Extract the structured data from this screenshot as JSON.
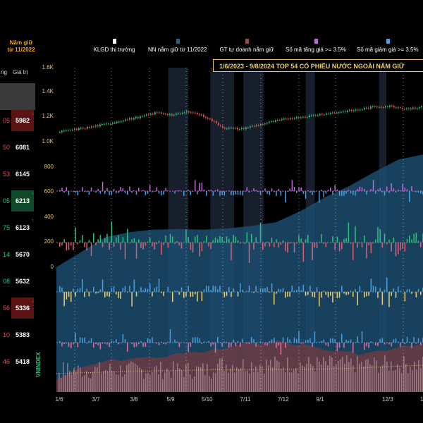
{
  "left_table": {
    "header_main": "Năm giữ từ 11/2022",
    "col_a": "ng",
    "col_b": "Giá trị",
    "rows": [
      {
        "a": "05",
        "b": "5982",
        "a_color": "#e0524a",
        "bg": "#5a1414",
        "arrow": "↓",
        "arrow_color": "#e0524a"
      },
      {
        "a": "50",
        "b": "6081",
        "a_color": "#e0524a",
        "bg": "#000000",
        "arrow": "",
        "arrow_color": ""
      },
      {
        "a": "53",
        "b": "6145",
        "a_color": "#e0524a",
        "bg": "#000000",
        "arrow": "",
        "arrow_color": ""
      },
      {
        "a": "05",
        "b": "6213",
        "a_color": "#2ec27e",
        "bg": "#0f4a2a",
        "arrow": "↑",
        "arrow_color": "#2ec27e"
      },
      {
        "a": "75",
        "b": "6123",
        "a_color": "#2ec27e",
        "bg": "#000000",
        "arrow": "↑",
        "arrow_color": "#2ec27e"
      },
      {
        "a": "14",
        "b": "5670",
        "a_color": "#2ec27e",
        "bg": "#000000",
        "arrow": "",
        "arrow_color": ""
      },
      {
        "a": "08",
        "b": "5632",
        "a_color": "#2ec27e",
        "bg": "#000000",
        "arrow": "",
        "arrow_color": ""
      },
      {
        "a": "56",
        "b": "5336",
        "a_color": "#e0524a",
        "bg": "#5a1414",
        "arrow": "↓",
        "arrow_color": "#e0524a"
      },
      {
        "a": "10",
        "b": "5383",
        "a_color": "#e0524a",
        "bg": "#000000",
        "arrow": "",
        "arrow_color": ""
      },
      {
        "a": "46",
        "b": "5418",
        "a_color": "#e0524a",
        "bg": "#000000",
        "arrow": "",
        "arrow_color": ""
      }
    ]
  },
  "legend": [
    {
      "label": "KLGD thị trường",
      "color": "#ffffff"
    },
    {
      "label": "NN nắm giữ từ 11/2022",
      "color": "#2a5f86"
    },
    {
      "label": "GT tự doanh nắm giữ",
      "color": "#a04848"
    },
    {
      "label": "Số mã tăng giá >= 3.5%",
      "color": "#c06ad8"
    },
    {
      "label": "Số mã giảm giá >= 3.5%",
      "color": "#4aa0e0"
    }
  ],
  "banner": "1/6/2023 - 9/8/2024   TOP 54   CỔ PHIẾU NƯỚC NGOÀI NẮM GIỮ",
  "chart_data": {
    "type": "line",
    "ylabel": "VNINDEX",
    "y_ticks": [
      "1.6K",
      "1.4K",
      "1.2K",
      "1.0K",
      "800",
      "600",
      "400",
      "200",
      "0"
    ],
    "x_ticks": [
      "1/6",
      "3/7",
      "3/8",
      "5/9",
      "5/10",
      "7/11",
      "7/12",
      "9/1",
      "12/3",
      "1"
    ],
    "vnindex_ylim": [
      900,
      1600
    ],
    "series": [
      {
        "name": "VNINDEX",
        "values": [
          1075,
          1095,
          1115,
          1140,
          1170,
          1195,
          1230,
          1210,
          1240,
          1190,
          1110,
          1100,
          1130,
          1160,
          1185,
          1200,
          1220,
          1235,
          1250,
          1275,
          1280,
          1260,
          1275
        ]
      }
    ],
    "foreign_holding": [
      0,
      120,
      240,
      280,
      300,
      305,
      300,
      310,
      330,
      360,
      450,
      560,
      650,
      760,
      860,
      900
    ],
    "shaded_ranges": [
      [
        0.305,
        0.36
      ],
      [
        0.42,
        0.485
      ],
      [
        0.51,
        0.565
      ],
      [
        0.68,
        0.705
      ],
      [
        0.88,
        0.9
      ]
    ],
    "grid": "dotted vertical",
    "legend_position": "top"
  }
}
